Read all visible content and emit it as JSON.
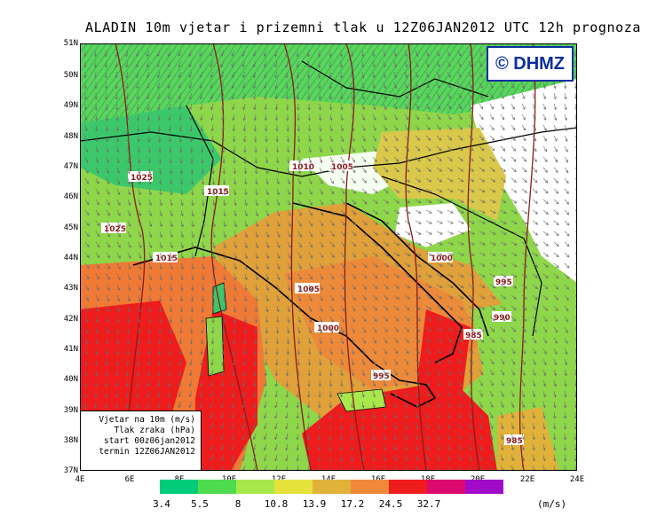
{
  "title": "ALADIN 10m vjetar i prizemni tlak u 12Z06JAN2012 UTC 12h prognoza",
  "logo": "© DHMZ",
  "info": {
    "line1": "Vjetar na 10m (m/s)",
    "line2": "Tlak zraka (hPa)",
    "line3": "start 00z06jan2012",
    "line4": "termin 12Z06JAN2012"
  },
  "lat_labels": [
    "51N",
    "50N",
    "49N",
    "48N",
    "47N",
    "46N",
    "45N",
    "44N",
    "43N",
    "42N",
    "41N",
    "40N",
    "39N",
    "38N",
    "37N"
  ],
  "lon_labels": [
    "4E",
    "6E",
    "8E",
    "10E",
    "12E",
    "14E",
    "16E",
    "18E",
    "20E",
    "22E",
    "24E"
  ],
  "legend": {
    "colors": [
      "#00cc7a",
      "#4edc4e",
      "#a8e84a",
      "#e6e23c",
      "#e0b23a",
      "#f08a3a",
      "#ee1c1c",
      "#dc0a6e",
      "#a00ac8"
    ],
    "labels": [
      "3.4",
      "5.5",
      "8",
      "10.8",
      "13.9",
      "17.2",
      "24.5",
      "32.7"
    ],
    "unit": "(m/s)"
  },
  "isobars": [
    "1025",
    "1015",
    "1010",
    "1005",
    "1025",
    "1015",
    "1005",
    "1000",
    "1000",
    "995",
    "990",
    "985",
    "995",
    "985"
  ]
}
